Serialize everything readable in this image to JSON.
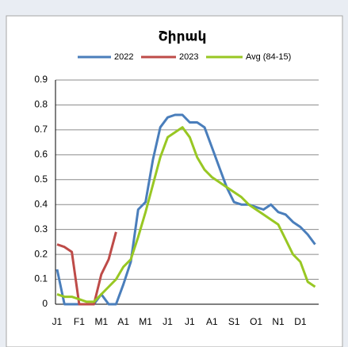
{
  "chart_data": {
    "type": "line",
    "title": "Շիրակ",
    "categories": [
      "J1",
      null,
      null,
      "F1",
      null,
      null,
      "M1",
      null,
      null,
      "A1",
      null,
      null,
      "M1",
      null,
      null,
      "J1",
      null,
      null,
      "J1",
      null,
      null,
      "A1",
      null,
      null,
      "S1",
      null,
      null,
      "O1",
      null,
      null,
      "N1",
      null,
      null,
      "D1",
      null,
      null
    ],
    "series": [
      {
        "name": "2022",
        "color": "#4a7ebb",
        "values": [
          0.14,
          0,
          0,
          0,
          0,
          0,
          0.04,
          0,
          0,
          0.08,
          0.17,
          0.38,
          0.41,
          0.58,
          0.71,
          0.75,
          0.76,
          0.76,
          0.73,
          0.73,
          0.71,
          0.63,
          0.55,
          0.47,
          0.41,
          0.4,
          0.4,
          0.39,
          0.38,
          0.4,
          0.37,
          0.36,
          0.33,
          0.31,
          0.28,
          0.24
        ]
      },
      {
        "name": "2023",
        "color": "#be4b48",
        "values": [
          0.24,
          0.23,
          0.21,
          0,
          0,
          0,
          0.12,
          0.18,
          0.29,
          null,
          null,
          null,
          null,
          null,
          null,
          null,
          null,
          null,
          null,
          null,
          null,
          null,
          null,
          null,
          null,
          null,
          null,
          null,
          null,
          null,
          null,
          null,
          null,
          null,
          null,
          null
        ]
      },
      {
        "name": "Avg (84-15)",
        "color": "#98c723",
        "values": [
          0.04,
          0.03,
          0.03,
          0.02,
          0.01,
          0.01,
          0.04,
          0.07,
          0.1,
          0.15,
          0.18,
          0.27,
          0.37,
          0.48,
          0.59,
          0.67,
          0.69,
          0.71,
          0.67,
          0.59,
          0.54,
          0.51,
          0.49,
          0.47,
          0.45,
          0.43,
          0.4,
          0.38,
          0.36,
          0.34,
          0.32,
          0.26,
          0.2,
          0.17,
          0.09,
          0.07
        ]
      }
    ],
    "ylim": [
      0,
      0.9
    ],
    "yticks": [
      0,
      0.1,
      0.2,
      0.3,
      0.4,
      0.5,
      0.6,
      0.7,
      0.8,
      0.9
    ],
    "grid": true,
    "legend": "top"
  }
}
